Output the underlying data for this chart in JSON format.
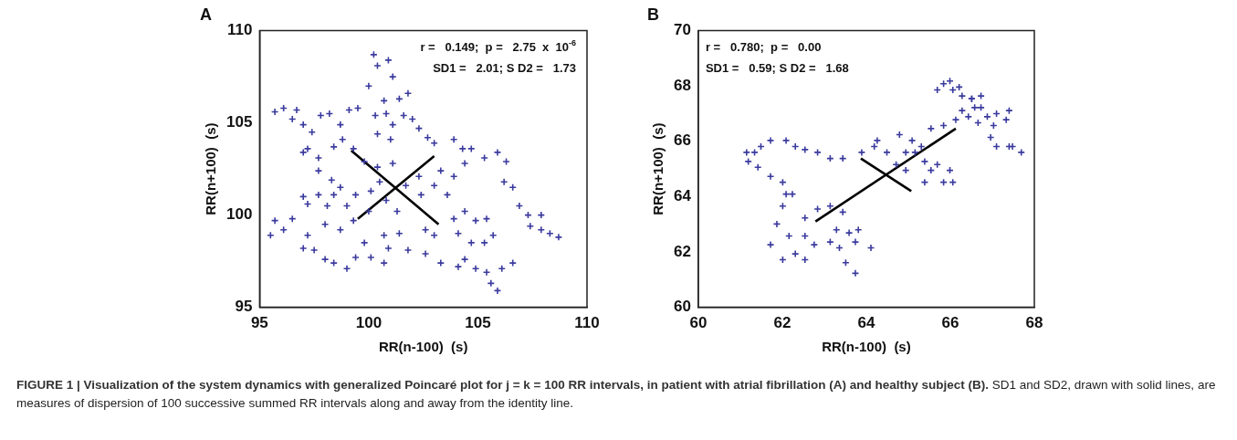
{
  "chart_data": [
    {
      "type": "scatter",
      "title": "A",
      "xlabel": "RR(n-100)  (s)",
      "ylabel": "RR(n+100)  (s)",
      "xlim": [
        95,
        110
      ],
      "ylim": [
        95,
        110
      ],
      "xticks": [
        95,
        100,
        105,
        110
      ],
      "yticks": [
        95,
        100,
        105,
        110
      ],
      "legend": false,
      "grid": false,
      "annotations": [
        "r =   0.149;  p =   2.75  x  10$^{-6}$",
        "SD1 =   2.01; S D2 =   1.73",
        "FIGURE 1 | Visualization of the system dynamics with generalized Poincaré plot for j = k = 100 RR intervals, in patient with atrial fibrillation (A) and healthy subject (B).",
        "SD1 and SD2, drawn with solid lines, are measures of dispersion of 100 successive summed RR intervals along and away from the identity line."
      ],
      "series": [
        {
          "color": "#3a3a9e",
          "marker": "cross",
          "x": [
            100.23,
            100.9,
            100.4,
            101.1,
            100.0,
            100.7,
            101.4,
            101.8,
            95.7,
            96.1,
            96.7,
            96.5,
            97.0,
            97.4,
            97.8,
            98.2,
            98.7,
            99.1,
            99.5,
            98.8,
            99.3,
            98.4,
            97.7,
            97.2,
            97.0,
            100.3,
            100.8,
            101.1,
            101.6,
            102.0,
            102.3,
            100.4,
            101.0,
            102.7,
            103.0,
            99.8,
            100.4,
            101.1,
            100.5,
            100.1,
            100.8,
            101.7,
            102.3,
            102.4,
            103.0,
            103.3,
            101.3,
            100.0,
            103.9,
            104.3,
            104.7,
            105.3,
            105.9,
            106.3,
            106.2,
            106.6,
            106.9,
            107.3,
            107.9,
            107.4,
            107.9,
            108.3,
            108.7,
            104.4,
            103.9,
            103.6,
            103.9,
            104.4,
            104.9,
            105.4,
            104.1,
            104.7,
            105.3,
            105.7,
            104.4,
            104.9,
            104.1,
            105.4,
            105.6,
            105.9,
            106.1,
            106.6,
            103.3,
            102.6,
            103.0,
            102.6,
            95.5,
            95.7,
            96.1,
            96.5,
            97.0,
            97.2,
            97.7,
            98.1,
            98.4,
            98.7,
            99.0,
            99.4,
            99.3,
            98.7,
            98.0,
            97.2,
            97.0,
            97.5,
            98.0,
            98.4,
            99.0,
            99.4,
            100.1,
            100.7,
            99.8,
            100.7,
            101.4,
            101.8,
            100.9,
            97.7,
            98.3
          ],
          "values": [
            108.7,
            108.4,
            108.1,
            107.5,
            107.0,
            106.2,
            106.3,
            106.6,
            105.6,
            105.8,
            105.7,
            105.2,
            104.9,
            104.5,
            105.4,
            105.5,
            104.9,
            105.7,
            105.8,
            104.1,
            103.6,
            103.7,
            103.1,
            103.6,
            103.4,
            105.4,
            105.5,
            104.9,
            105.4,
            105.2,
            104.7,
            104.4,
            104.1,
            104.2,
            103.9,
            102.9,
            102.6,
            102.8,
            101.8,
            101.3,
            100.8,
            101.6,
            102.1,
            101.1,
            101.6,
            102.4,
            100.2,
            100.2,
            104.1,
            103.6,
            103.6,
            103.1,
            103.4,
            102.9,
            101.8,
            101.5,
            100.5,
            100.0,
            100.0,
            99.4,
            99.2,
            99.0,
            98.8,
            102.8,
            102.1,
            101.1,
            99.8,
            100.2,
            99.7,
            99.8,
            99.0,
            98.5,
            98.5,
            98.9,
            97.6,
            97.1,
            97.2,
            96.9,
            96.3,
            95.9,
            97.1,
            97.4,
            97.4,
            97.9,
            98.9,
            99.2,
            98.9,
            99.7,
            99.2,
            99.8,
            101.0,
            100.6,
            101.1,
            100.5,
            101.1,
            101.5,
            100.5,
            101.1,
            99.7,
            99.2,
            99.5,
            98.9,
            98.2,
            98.1,
            97.6,
            97.4,
            97.1,
            97.7,
            97.7,
            97.4,
            98.5,
            98.9,
            99.0,
            98.1,
            98.2,
            102.4,
            101.9
          ]
        },
        {
          "type": "line",
          "marker": "none",
          "color": "#000000",
          "x": [
            99.5,
            103.0
          ],
          "values": [
            99.8,
            103.2
          ]
        },
        {
          "type": "line",
          "marker": "none",
          "color": "#000000",
          "x": [
            99.2,
            103.2
          ],
          "values": [
            103.5,
            99.5
          ]
        }
      ]
    },
    {
      "type": "scatter",
      "title": "B",
      "xlabel": "RR(n-100)  (s)",
      "ylabel": "RR(n+100)  (s)",
      "xlim": [
        60,
        68
      ],
      "ylim": [
        60,
        70
      ],
      "xticks": [
        60,
        62,
        64,
        66,
        68
      ],
      "yticks": [
        60,
        62,
        64,
        66,
        68,
        70
      ],
      "legend": false,
      "grid": false,
      "annotations": [
        "r =   0.780;  p =   0.00",
        "SD1 =   0.59; S D2 =   1.68"
      ],
      "series": [
        {
          "color": "#3a3a9e",
          "marker": "cross",
          "x": [
            63.74,
            63.51,
            63.36,
            63.14,
            63.29,
            63.59,
            63.81,
            64.11,
            63.74,
            63.44,
            63.14,
            62.84,
            62.54,
            62.24,
            62.01,
            61.87,
            61.72,
            62.01,
            62.31,
            62.54,
            62.76,
            62.54,
            62.16,
            62.09,
            62.01,
            61.72,
            61.42,
            61.19,
            61.15,
            61.34,
            61.49,
            61.72,
            62.09,
            62.31,
            62.54,
            62.84,
            63.14,
            63.44,
            63.89,
            64.19,
            64.26,
            64.49,
            64.79,
            65.09,
            65.16,
            65.39,
            65.54,
            65.84,
            66.06,
            65.99,
            65.69,
            65.39,
            64.94,
            64.71,
            64.94,
            65.31,
            65.54,
            65.84,
            66.13,
            66.28,
            66.51,
            66.73,
            66.58,
            66.43,
            66.66,
            66.88,
            67.1,
            67.4,
            67.33,
            67.03,
            66.96,
            67.1,
            67.4,
            67.69,
            67.48,
            66.73,
            66.51,
            66.28,
            66.06,
            65.84,
            65.69,
            65.99,
            66.21
          ],
          "values": [
            61.23,
            61.61,
            62.15,
            62.36,
            62.8,
            62.69,
            62.8,
            62.15,
            62.36,
            63.44,
            63.66,
            63.55,
            63.23,
            64.09,
            63.66,
            63.01,
            62.26,
            61.72,
            61.93,
            61.72,
            62.26,
            62.58,
            62.58,
            64.09,
            64.52,
            64.73,
            65.06,
            65.27,
            65.6,
            65.6,
            65.81,
            66.03,
            66.03,
            65.81,
            65.7,
            65.6,
            65.38,
            65.38,
            65.6,
            65.81,
            66.03,
            65.6,
            66.24,
            66.03,
            65.6,
            65.27,
            64.95,
            64.52,
            64.52,
            64.95,
            65.16,
            64.52,
            64.95,
            65.16,
            65.6,
            65.81,
            66.46,
            66.57,
            66.78,
            67.11,
            67.54,
            67.64,
            67.22,
            66.89,
            66.67,
            66.89,
            67.0,
            67.11,
            66.78,
            66.57,
            66.14,
            65.81,
            65.81,
            65.6,
            65.81,
            67.22,
            67.54,
            67.64,
            67.86,
            68.08,
            67.86,
            68.18,
            67.96
          ]
        },
        {
          "type": "line",
          "marker": "none",
          "color": "#000000",
          "x": [
            62.79,
            66.13
          ],
          "values": [
            63.1,
            66.46
          ]
        },
        {
          "type": "line",
          "marker": "none",
          "color": "#000000",
          "x": [
            63.87,
            65.07
          ],
          "values": [
            65.38,
            64.2
          ]
        }
      ]
    }
  ]
}
